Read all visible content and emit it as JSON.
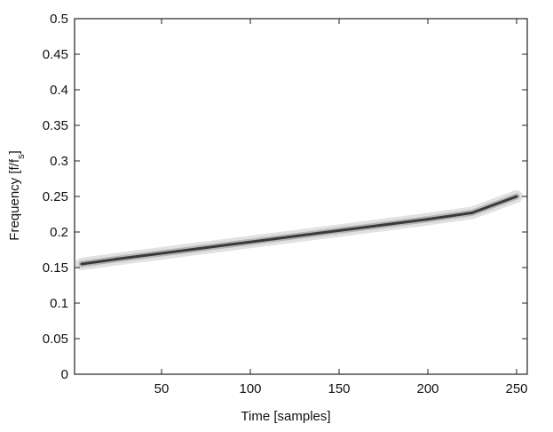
{
  "chart_data": {
    "type": "line",
    "title": "",
    "xlabel": "Time [samples]",
    "ylabel": "Frequency [f/f",
    "ylabel_subscript": "s",
    "ylabel_suffix": "]",
    "xlim": [
      1,
      256
    ],
    "ylim": [
      0,
      0.5
    ],
    "xticks": [
      50,
      100,
      150,
      200,
      250
    ],
    "yticks": [
      0,
      0.05,
      0.1,
      0.15,
      0.2,
      0.25,
      0.3,
      0.35,
      0.4,
      0.45,
      0.5
    ],
    "xtick_labels": [
      "50",
      "100",
      "150",
      "200",
      "250"
    ],
    "ytick_labels": [
      "0",
      "0.05",
      "0.1",
      "0.15",
      "0.2",
      "0.25",
      "0.3",
      "0.35",
      "0.4",
      "0.45",
      "0.5"
    ],
    "grid": false,
    "series": [
      {
        "x": [
          5,
          25,
          50,
          75,
          100,
          125,
          150,
          175,
          200,
          225,
          250
        ],
        "y": [
          0.155,
          0.162,
          0.17,
          0.178,
          0.186,
          0.194,
          0.202,
          0.21,
          0.218,
          0.227,
          0.25
        ],
        "color": "#3a3a3a"
      }
    ]
  }
}
